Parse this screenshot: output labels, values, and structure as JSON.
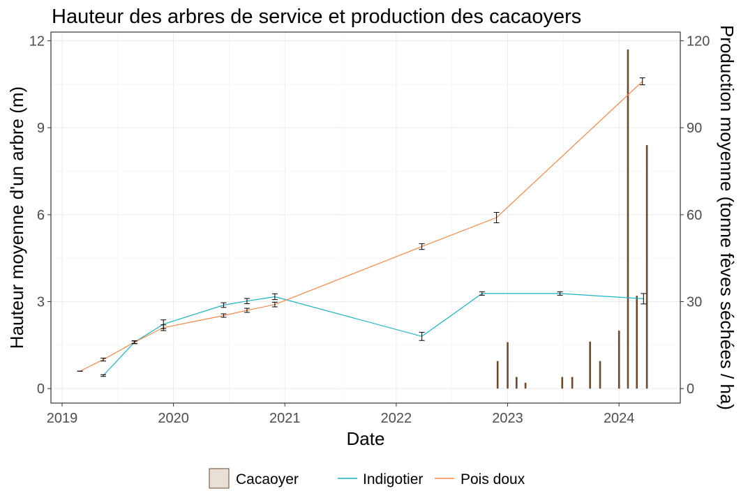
{
  "chart_data": {
    "type": "line",
    "title": "Hauteur des arbres de service et production des cacaoyers",
    "xlabel": "Date",
    "ylabel": "Hauteur moyenne d'un arbre (m)",
    "y2label": "Production moyenne (tonne fèves séchées / ha)",
    "xlim": [
      2018.9,
      2024.55
    ],
    "ylim": [
      -0.5,
      12.3
    ],
    "y2lim": [
      -5,
      123
    ],
    "x_ticks": [
      2019,
      2020,
      2021,
      2022,
      2023,
      2024
    ],
    "x_tick_labels": [
      "2019",
      "2020",
      "2021",
      "2022",
      "2023",
      "2024"
    ],
    "y_ticks": [
      0,
      3,
      6,
      9,
      12
    ],
    "y_tick_labels": [
      "0",
      "3",
      "6",
      "9",
      "12"
    ],
    "y2_ticks": [
      0,
      30,
      60,
      90,
      120
    ],
    "y2_tick_labels": [
      "0",
      "30",
      "60",
      "90",
      "120"
    ],
    "grid": true,
    "legend_position": "bottom",
    "series": [
      {
        "name": "Indigotier",
        "kind": "line",
        "axis": "left",
        "color": "#1ab2c4",
        "x": [
          2019.37,
          2019.65,
          2019.91,
          2020.45,
          2020.66,
          2020.91,
          2022.23,
          2022.77,
          2023.47,
          2024.22
        ],
        "values": [
          0.45,
          1.6,
          2.22,
          2.88,
          3.02,
          3.17,
          1.8,
          3.28,
          3.28,
          3.1
        ],
        "errors": [
          0.03,
          0.04,
          0.15,
          0.08,
          0.09,
          0.1,
          0.14,
          0.06,
          0.06,
          0.18
        ]
      },
      {
        "name": "Pois doux",
        "kind": "line",
        "axis": "left",
        "color": "#f5894a",
        "x": [
          2019.16,
          2019.37,
          2019.65,
          2019.91,
          2020.45,
          2020.66,
          2020.91,
          2022.23,
          2022.9,
          2024.21
        ],
        "values": [
          0.6,
          1.0,
          1.6,
          2.1,
          2.52,
          2.7,
          2.9,
          4.9,
          5.9,
          10.6
        ],
        "errors": [
          0.0,
          0.05,
          0.05,
          0.1,
          0.06,
          0.07,
          0.08,
          0.1,
          0.18,
          0.12
        ]
      },
      {
        "name": "Cacaoyer",
        "kind": "bar",
        "axis": "right",
        "color": "#6b4a2b",
        "x": [
          2022.91,
          2023.0,
          2023.08,
          2023.16,
          2023.49,
          2023.58,
          2023.74,
          2023.83,
          2024.0,
          2024.08,
          2024.16,
          2024.25
        ],
        "values": [
          9.5,
          16,
          4,
          2,
          4,
          4,
          16.2,
          9.5,
          20,
          117,
          32,
          84
        ]
      }
    ],
    "legend": [
      {
        "label": "Cacaoyer",
        "kind": "box",
        "color": "#6b4a2b"
      },
      {
        "label": "Indigotier",
        "kind": "line",
        "color": "#1ab2c4"
      },
      {
        "label": "Pois doux",
        "kind": "line",
        "color": "#f5894a"
      }
    ]
  }
}
